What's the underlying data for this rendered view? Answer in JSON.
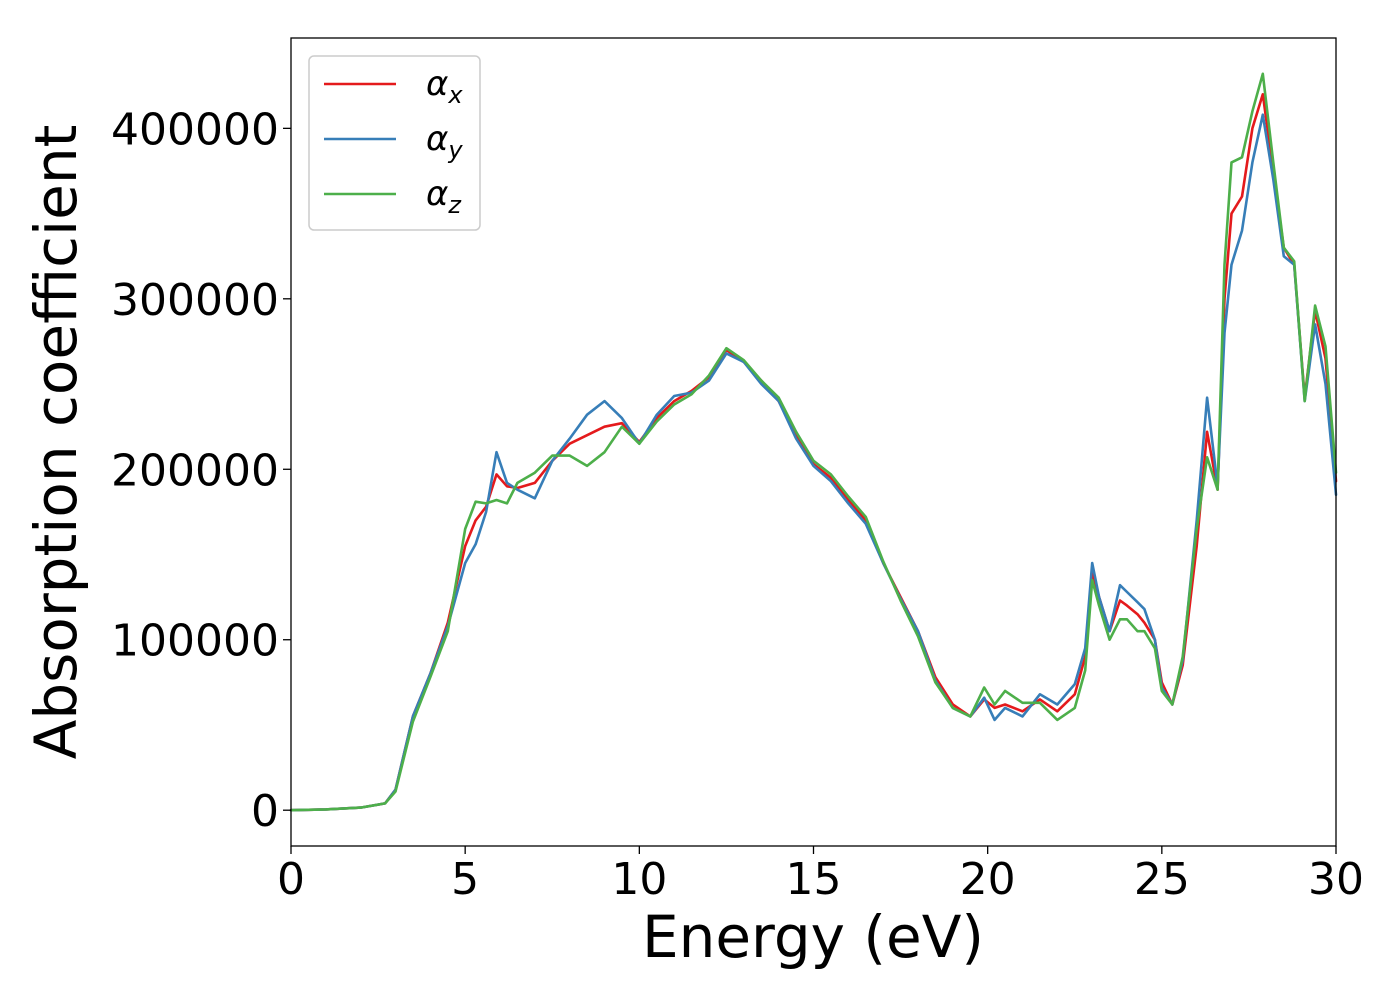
{
  "chart_data": {
    "type": "line",
    "xlabel": "Energy (eV)",
    "ylabel": "Absorption coefficient",
    "xlim": [
      0,
      30
    ],
    "ylim": [
      -21000,
      453000
    ],
    "xticks": [
      "0",
      "5",
      "10",
      "15",
      "20",
      "25",
      "30"
    ],
    "yticks": [
      "0",
      "100000",
      "200000",
      "300000",
      "400000"
    ],
    "grid": false,
    "legend_position": "top-left",
    "series": [
      {
        "name": "α",
        "subscript": "x",
        "color": "#e41a1c",
        "x": [
          0,
          1,
          2,
          2.7,
          3,
          3.5,
          4,
          4.5,
          5,
          5.3,
          5.6,
          5.9,
          6.2,
          6.5,
          7,
          7.5,
          8,
          8.5,
          9,
          9.5,
          10,
          10.5,
          11,
          11.5,
          12,
          12.5,
          13,
          13.5,
          14,
          14.5,
          15,
          15.5,
          16,
          16.5,
          17,
          17.5,
          18,
          18.5,
          19,
          19.5,
          19.9,
          20.2,
          20.5,
          21,
          21.5,
          22,
          22.5,
          22.8,
          23,
          23.2,
          23.5,
          23.8,
          24,
          24.3,
          24.5,
          24.8,
          25,
          25.3,
          25.6,
          26,
          26.3,
          26.6,
          26.8,
          27,
          27.3,
          27.6,
          27.9,
          28.2,
          28.5,
          28.8,
          29.1,
          29.4,
          29.7,
          30
        ],
        "y": [
          0,
          500,
          1500,
          4000,
          12000,
          55000,
          80000,
          110000,
          155000,
          170000,
          178000,
          197000,
          190000,
          189000,
          192000,
          205000,
          215000,
          220000,
          225000,
          227000,
          216000,
          230000,
          240000,
          246000,
          254000,
          270000,
          263000,
          252000,
          240000,
          220000,
          203000,
          195000,
          182000,
          170000,
          145000,
          125000,
          105000,
          78000,
          62000,
          55000,
          65000,
          60000,
          62000,
          58000,
          65000,
          58000,
          68000,
          90000,
          140000,
          125000,
          105000,
          123000,
          120000,
          115000,
          110000,
          100000,
          75000,
          62000,
          85000,
          155000,
          222000,
          188000,
          300000,
          350000,
          360000,
          400000,
          420000,
          375000,
          330000,
          320000,
          242000,
          293000,
          265000,
          193000
        ]
      },
      {
        "name": "α",
        "subscript": "y",
        "color": "#377eb8",
        "x": [
          0,
          1,
          2,
          2.7,
          3,
          3.5,
          4,
          4.5,
          5,
          5.3,
          5.6,
          5.9,
          6.2,
          6.5,
          7,
          7.5,
          8,
          8.5,
          9,
          9.5,
          10,
          10.5,
          11,
          11.5,
          12,
          12.5,
          13,
          13.5,
          14,
          14.5,
          15,
          15.5,
          16,
          16.5,
          17,
          17.5,
          18,
          18.5,
          19,
          19.5,
          19.9,
          20.2,
          20.5,
          21,
          21.5,
          22,
          22.5,
          22.8,
          23,
          23.2,
          23.5,
          23.8,
          24,
          24.3,
          24.5,
          24.8,
          25,
          25.3,
          25.6,
          26,
          26.3,
          26.6,
          26.8,
          27,
          27.3,
          27.6,
          27.9,
          28.2,
          28.5,
          28.8,
          29.1,
          29.4,
          29.7,
          30
        ],
        "y": [
          0,
          500,
          1500,
          4000,
          12000,
          55000,
          80000,
          108000,
          145000,
          156000,
          175000,
          210000,
          192000,
          188000,
          183000,
          205000,
          218000,
          232000,
          240000,
          230000,
          215000,
          232000,
          243000,
          245000,
          252000,
          268000,
          263000,
          250000,
          240000,
          218000,
          202000,
          193000,
          180000,
          168000,
          145000,
          124000,
          105000,
          76000,
          60000,
          55000,
          66000,
          53000,
          60000,
          55000,
          68000,
          62000,
          74000,
          95000,
          145000,
          125000,
          105000,
          132000,
          128000,
          122000,
          118000,
          100000,
          72000,
          62000,
          88000,
          170000,
          242000,
          190000,
          280000,
          320000,
          340000,
          380000,
          408000,
          370000,
          325000,
          320000,
          240000,
          285000,
          250000,
          185000
        ]
      },
      {
        "name": "α",
        "subscript": "z",
        "color": "#4daf4a",
        "x": [
          0,
          1,
          2,
          2.7,
          3,
          3.5,
          4,
          4.5,
          5,
          5.3,
          5.6,
          5.9,
          6.2,
          6.5,
          7,
          7.5,
          8,
          8.5,
          9,
          9.5,
          10,
          10.5,
          11,
          11.5,
          12,
          12.5,
          13,
          13.5,
          14,
          14.5,
          15,
          15.5,
          16,
          16.5,
          17,
          17.5,
          18,
          18.5,
          19,
          19.5,
          19.9,
          20.2,
          20.5,
          21,
          21.5,
          22,
          22.5,
          22.8,
          23,
          23.2,
          23.5,
          23.8,
          24,
          24.3,
          24.5,
          24.8,
          25,
          25.3,
          25.6,
          26,
          26.3,
          26.6,
          26.8,
          27,
          27.3,
          27.6,
          27.9,
          28.2,
          28.5,
          28.8,
          29.1,
          29.4,
          29.7,
          30
        ],
        "y": [
          0,
          500,
          1500,
          4000,
          11000,
          52000,
          78000,
          105000,
          165000,
          181000,
          180000,
          182000,
          180000,
          192000,
          198000,
          208000,
          208000,
          202000,
          210000,
          225000,
          215000,
          228000,
          238000,
          244000,
          255000,
          271000,
          264000,
          252000,
          242000,
          222000,
          205000,
          197000,
          184000,
          172000,
          146000,
          123000,
          102000,
          75000,
          60000,
          55000,
          72000,
          62000,
          70000,
          63000,
          63000,
          53000,
          60000,
          82000,
          135000,
          120000,
          100000,
          112000,
          112000,
          105000,
          105000,
          95000,
          70000,
          62000,
          90000,
          165000,
          207000,
          188000,
          320000,
          380000,
          383000,
          410000,
          432000,
          380000,
          330000,
          322000,
          240000,
          296000,
          272000,
          198000
        ]
      }
    ]
  }
}
